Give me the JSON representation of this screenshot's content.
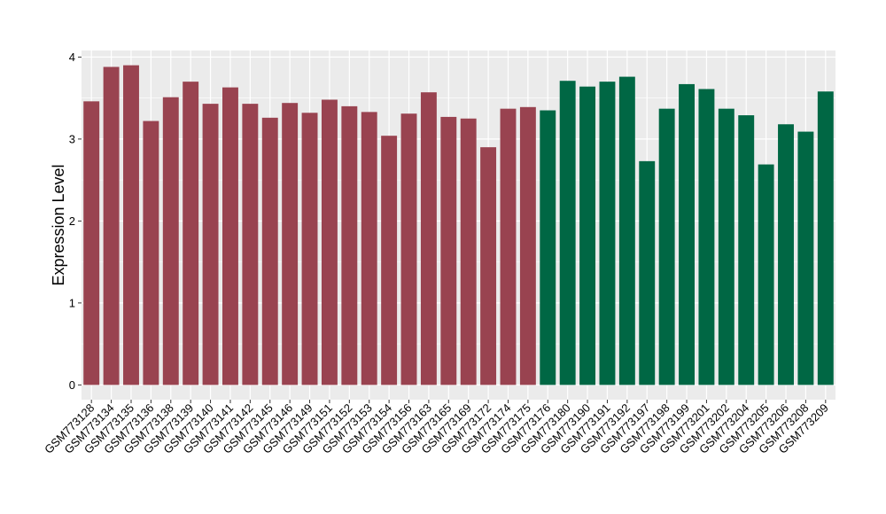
{
  "chart_data": {
    "type": "bar",
    "ylabel": "Expression Level",
    "xlabel": "",
    "ylim": [
      -0.18,
      4.08
    ],
    "yticks": [
      0,
      1,
      2,
      3,
      4
    ],
    "grid": true,
    "background": "#ebebeb",
    "grid_color": "#ffffff",
    "categories": [
      "GSM773128",
      "GSM773134",
      "GSM773135",
      "GSM773136",
      "GSM773138",
      "GSM773139",
      "GSM773140",
      "GSM773141",
      "GSM773142",
      "GSM773145",
      "GSM773146",
      "GSM773149",
      "GSM773151",
      "GSM773152",
      "GSM773153",
      "GSM773154",
      "GSM773156",
      "GSM773163",
      "GSM773165",
      "GSM773169",
      "GSM773172",
      "GSM773174",
      "GSM773175",
      "GSM773176",
      "GSM773180",
      "GSM773190",
      "GSM773191",
      "GSM773192",
      "GSM773197",
      "GSM773198",
      "GSM773199",
      "GSM773201",
      "GSM773202",
      "GSM773204",
      "GSM773205",
      "GSM773206",
      "GSM773208",
      "GSM773209"
    ],
    "values": [
      3.46,
      3.88,
      3.9,
      3.22,
      3.51,
      3.7,
      3.43,
      3.63,
      3.43,
      3.26,
      3.44,
      3.32,
      3.48,
      3.4,
      3.33,
      3.04,
      3.31,
      3.57,
      3.27,
      3.25,
      2.9,
      3.37,
      3.39,
      3.35,
      3.71,
      3.64,
      3.7,
      3.76,
      2.73,
      3.37,
      3.67,
      3.61,
      3.37,
      3.29,
      2.69,
      3.18,
      3.09,
      3.58
    ],
    "groups": [
      0,
      0,
      0,
      0,
      0,
      0,
      0,
      0,
      0,
      0,
      0,
      0,
      0,
      0,
      0,
      0,
      0,
      0,
      0,
      0,
      0,
      0,
      0,
      1,
      1,
      1,
      1,
      1,
      1,
      1,
      1,
      1,
      1,
      1,
      1,
      1,
      1,
      1
    ],
    "colors": [
      "#994350",
      "#006744"
    ]
  }
}
